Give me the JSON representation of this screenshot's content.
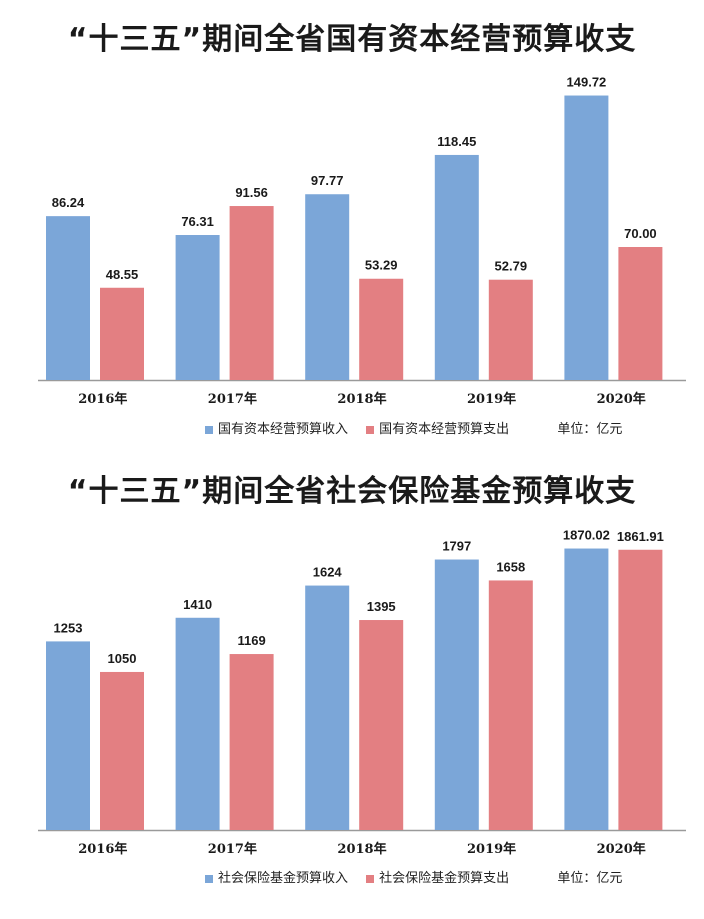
{
  "colors": {
    "income": "#7BA6D8",
    "expense": "#E37F82"
  },
  "chart_data": [
    {
      "type": "bar",
      "title": "“十三五”期间全省国有资本经营预算收支",
      "categories": [
        "2016年",
        "2017年",
        "2018年",
        "2019年",
        "2020年"
      ],
      "series": [
        {
          "name": "国有资本经营预算收入",
          "values": [
            86.24,
            76.31,
            97.77,
            118.45,
            149.72
          ],
          "labels": [
            "86.24",
            "76.31",
            "97.77",
            "118.45",
            "149.72"
          ]
        },
        {
          "name": "国有资本经营预算支出",
          "values": [
            48.55,
            91.56,
            53.29,
            52.79,
            70.0
          ],
          "labels": [
            "48.55",
            "91.56",
            "53.29",
            "52.79",
            "70.00"
          ]
        }
      ],
      "unit": "单位：亿元",
      "ylim": [
        0,
        160
      ],
      "grid": false,
      "legend": "bottom"
    },
    {
      "type": "bar",
      "title": "“十三五”期间全省社会保险基金预算收支",
      "categories": [
        "2016年",
        "2017年",
        "2018年",
        "2019年",
        "2020年"
      ],
      "series": [
        {
          "name": "社会保险基金预算收入",
          "values": [
            1253,
            1410,
            1624,
            1797,
            1870.02
          ],
          "labels": [
            "1253",
            "1410",
            "1624",
            "1797",
            "1870.02"
          ]
        },
        {
          "name": "社会保险基金预算支出",
          "values": [
            1050,
            1169,
            1395,
            1658,
            1861.91
          ],
          "labels": [
            "1050",
            "1169",
            "1395",
            "1658",
            "1861.91"
          ]
        }
      ],
      "unit": "单位：亿元",
      "ylim": [
        0,
        1940
      ],
      "grid": false,
      "legend": "bottom"
    }
  ]
}
